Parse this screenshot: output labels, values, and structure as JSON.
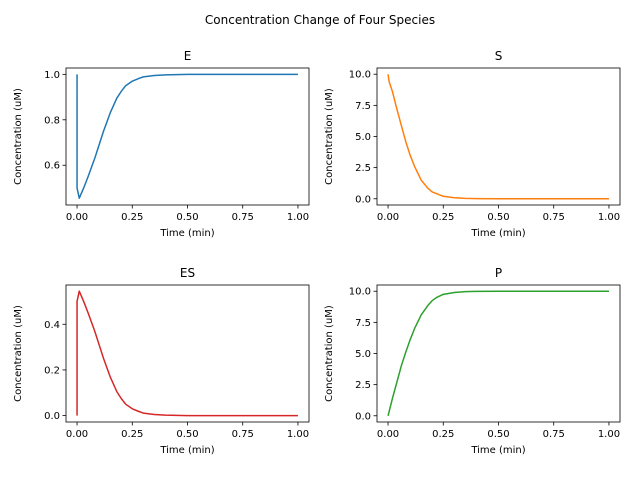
{
  "suptitle": "Concentration Change of Four Species",
  "chart_data": [
    {
      "type": "line",
      "title": "E",
      "xlabel": "Time (min)",
      "ylabel": "Concentration (uM)",
      "xlim": [
        -0.05,
        1.05
      ],
      "ylim": [
        0.425,
        1.028
      ],
      "xticks": [
        "0.00",
        "0.25",
        "0.50",
        "0.75",
        "1.00"
      ],
      "yticks": [
        "0.6",
        "0.8",
        "1.0"
      ],
      "series": [
        {
          "color": "#1f77b4",
          "x": [
            0,
            0.0,
            0.01,
            0.03,
            0.05,
            0.08,
            0.1,
            0.12,
            0.15,
            0.18,
            0.2,
            0.22,
            0.25,
            0.28,
            0.3,
            0.35,
            0.4,
            0.45,
            0.5,
            0.6,
            0.7,
            0.8,
            0.9,
            1.0
          ],
          "y": [
            1.0,
            0.5,
            0.455,
            0.5,
            0.55,
            0.63,
            0.69,
            0.75,
            0.83,
            0.895,
            0.925,
            0.95,
            0.97,
            0.982,
            0.989,
            0.995,
            0.998,
            0.999,
            1.0,
            1.0,
            1.0,
            1.0,
            1.0,
            1.0
          ]
        }
      ]
    },
    {
      "type": "line",
      "title": "S",
      "xlabel": "Time (min)",
      "ylabel": "Concentration (uM)",
      "xlim": [
        -0.05,
        1.05
      ],
      "ylim": [
        -0.5,
        10.5
      ],
      "xticks": [
        "0.00",
        "0.25",
        "0.50",
        "0.75",
        "1.00"
      ],
      "yticks": [
        "0.0",
        "2.5",
        "5.0",
        "7.5",
        "10.0"
      ],
      "series": [
        {
          "color": "#ff7f0e",
          "x": [
            0,
            0.005,
            0.02,
            0.04,
            0.06,
            0.08,
            0.1,
            0.12,
            0.15,
            0.18,
            0.2,
            0.25,
            0.3,
            0.35,
            0.4,
            0.5,
            0.6,
            0.8,
            1.0
          ],
          "y": [
            10.0,
            9.4,
            8.6,
            7.2,
            5.9,
            4.6,
            3.5,
            2.6,
            1.5,
            0.85,
            0.55,
            0.2,
            0.08,
            0.03,
            0.01,
            0.0,
            0.0,
            0.0,
            0.0
          ]
        }
      ]
    },
    {
      "type": "line",
      "title": "ES",
      "xlabel": "Time (min)",
      "ylabel": "Concentration (uM)",
      "xlim": [
        -0.05,
        1.05
      ],
      "ylim": [
        -0.028,
        0.572
      ],
      "xticks": [
        "0.00",
        "0.25",
        "0.50",
        "0.75",
        "1.00"
      ],
      "yticks": [
        "0.0",
        "0.2",
        "0.4"
      ],
      "series": [
        {
          "color": "#d62728",
          "x": [
            0,
            0.0,
            0.01,
            0.03,
            0.05,
            0.08,
            0.1,
            0.12,
            0.15,
            0.18,
            0.2,
            0.22,
            0.25,
            0.28,
            0.3,
            0.35,
            0.4,
            0.45,
            0.5,
            0.6,
            0.8,
            1.0
          ],
          "y": [
            0.0,
            0.5,
            0.545,
            0.5,
            0.45,
            0.37,
            0.31,
            0.25,
            0.17,
            0.105,
            0.075,
            0.05,
            0.03,
            0.018,
            0.011,
            0.005,
            0.002,
            0.001,
            0.0,
            0.0,
            0.0,
            0.0
          ]
        }
      ]
    },
    {
      "type": "line",
      "title": "P",
      "xlabel": "Time (min)",
      "ylabel": "Concentration (uM)",
      "xlim": [
        -0.05,
        1.05
      ],
      "ylim": [
        -0.5,
        10.5
      ],
      "xticks": [
        "0.00",
        "0.25",
        "0.50",
        "0.75",
        "1.00"
      ],
      "yticks": [
        "0.0",
        "2.5",
        "5.0",
        "7.5",
        "10.0"
      ],
      "series": [
        {
          "color": "#2ca02c",
          "x": [
            0,
            0.02,
            0.04,
            0.06,
            0.08,
            0.1,
            0.12,
            0.15,
            0.18,
            0.2,
            0.22,
            0.25,
            0.3,
            0.35,
            0.4,
            0.5,
            0.6,
            0.8,
            1.0
          ],
          "y": [
            0.0,
            1.4,
            2.7,
            4.0,
            5.1,
            6.1,
            7.0,
            8.1,
            8.85,
            9.25,
            9.5,
            9.75,
            9.9,
            9.97,
            9.99,
            10.0,
            10.0,
            10.0,
            10.0
          ]
        }
      ]
    }
  ]
}
